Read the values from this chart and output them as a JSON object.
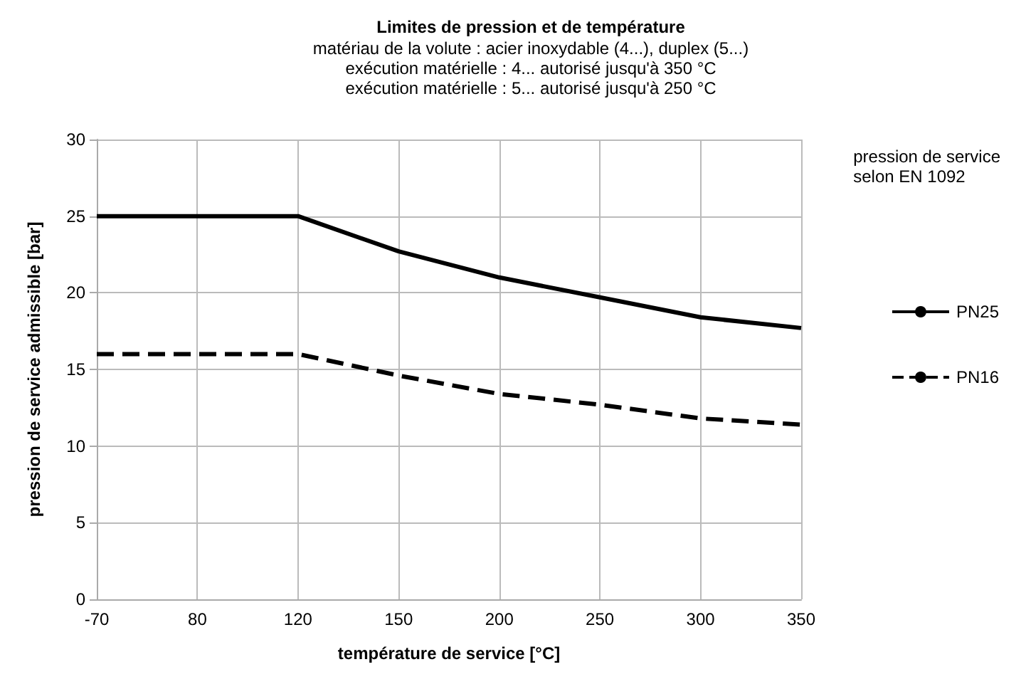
{
  "chart_data": {
    "type": "line",
    "title": "Limites de pression et de température",
    "subtitle": "matériau de la volute : acier inoxydable (4...), duplex (5...)\nexécution matérielle : 4... autorisé jusqu'à 350 °C\nexécution matérielle : 5... autorisé jusqu'à 250 °C",
    "xlabel": "température de service [°C]",
    "ylabel": "pression de service admissible [bar]",
    "legend_title": "pression de service\nselon EN 1092",
    "categories": [
      "-70",
      "80",
      "120",
      "150",
      "200",
      "250",
      "300",
      "350"
    ],
    "series": [
      {
        "name": "PN25",
        "color": "#000000",
        "line_style": "solid",
        "values": [
          25,
          25,
          25,
          22.7,
          21.0,
          19.7,
          18.4,
          17.7
        ]
      },
      {
        "name": "PN16",
        "color": "#000000",
        "line_style": "dashed",
        "values": [
          16,
          16,
          16,
          14.6,
          13.4,
          12.7,
          11.8,
          11.4
        ]
      }
    ],
    "ylim": [
      0,
      30
    ],
    "yticks": [
      0,
      5,
      10,
      15,
      20,
      25,
      30
    ],
    "grid": true,
    "legend": "right",
    "marker": "none"
  }
}
